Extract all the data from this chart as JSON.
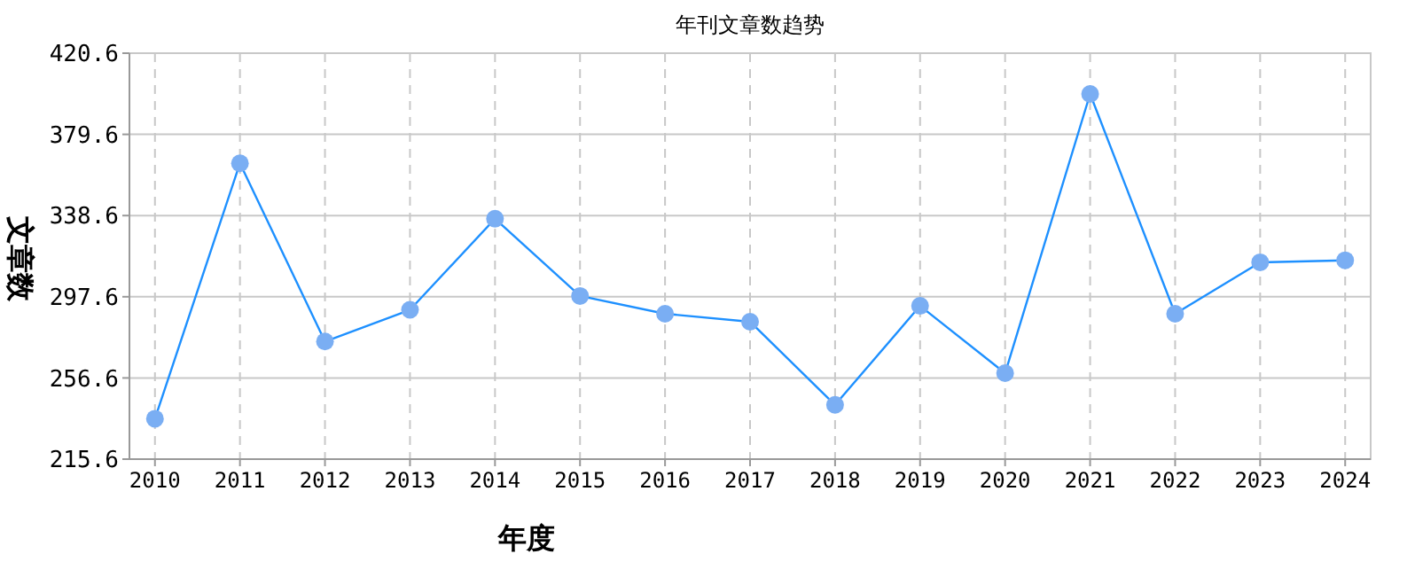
{
  "chart_data": {
    "type": "line",
    "title": "年刊文章数趋势",
    "xlabel": "年度",
    "ylabel": "文章数",
    "categories": [
      "2010",
      "2011",
      "2012",
      "2013",
      "2014",
      "2015",
      "2016",
      "2017",
      "2018",
      "2019",
      "2020",
      "2021",
      "2022",
      "2023",
      "2024"
    ],
    "series": [
      {
        "color": "#1e90ff",
        "values": [
          236,
          365,
          275,
          291,
          337,
          298,
          289,
          285,
          243,
          293,
          259,
          400,
          289,
          315,
          316
        ]
      }
    ],
    "ylim": [
      215.6,
      420.6
    ],
    "yticks": [
      215.6,
      256.6,
      297.6,
      338.6,
      379.6,
      420.6
    ],
    "grid": true,
    "marker": "circle",
    "line_style": "solid"
  }
}
